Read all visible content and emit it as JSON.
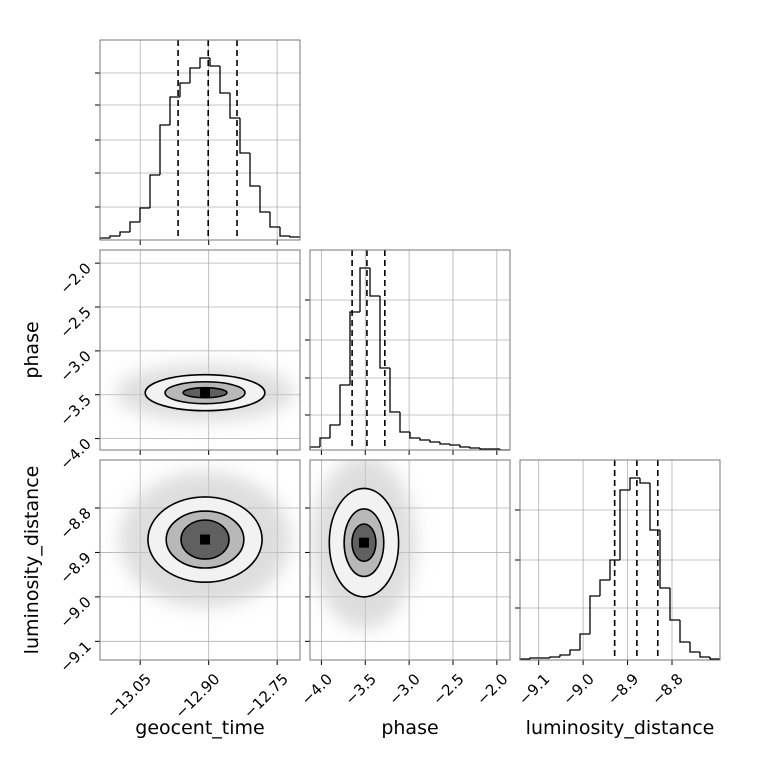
{
  "chart_data": {
    "type": "corner",
    "parameters": [
      {
        "name": "geocent_time",
        "lim": [
          -13.138,
          -12.7
        ],
        "ticks": [
          {
            "value": -13.05,
            "label": "−13.05"
          },
          {
            "value": -12.9,
            "label": "−12.90"
          },
          {
            "value": -12.75,
            "label": "−12.75"
          }
        ]
      },
      {
        "name": "phase",
        "lim": [
          -4.13,
          -1.85
        ],
        "ticks": [
          {
            "value": -4.0,
            "label": "−4.0"
          },
          {
            "value": -3.5,
            "label": "−3.5"
          },
          {
            "value": -3.0,
            "label": "−3.0"
          },
          {
            "value": -2.5,
            "label": "−2.5"
          },
          {
            "value": -2.0,
            "label": "−2.0"
          }
        ]
      },
      {
        "name": "luminosity_distance",
        "lim": [
          -9.142,
          -8.692
        ],
        "ticks": [
          {
            "value": -9.1,
            "label": "−9.1"
          },
          {
            "value": -9.0,
            "label": "−9.0"
          },
          {
            "value": -8.9,
            "label": "−8.9"
          },
          {
            "value": -8.8,
            "label": "−8.8"
          }
        ]
      }
    ],
    "histograms": [
      {
        "bins": [
          -13.138,
          -13.1161,
          -13.0942,
          -13.0723,
          -13.0504,
          -13.0285,
          -13.0066,
          -12.9847,
          -12.9628,
          -12.9409,
          -12.919,
          -12.8971,
          -12.8752,
          -12.8533,
          -12.8314,
          -12.8095,
          -12.7876,
          -12.7657,
          -12.7438,
          -12.7219,
          -12.7
        ],
        "counts": [
          2,
          4,
          8,
          18,
          32,
          65,
          115,
          143,
          157,
          172,
          182,
          174,
          147,
          122,
          87,
          54,
          28,
          13,
          4,
          3
        ],
        "quantiles": [
          -12.967,
          -12.901,
          -12.838
        ],
        "ylim": [
          0,
          200
        ],
        "yticks": [
          33,
          67,
          100,
          135,
          167
        ]
      },
      {
        "bins": [
          -4.13,
          -4.016,
          -3.902,
          -3.788,
          -3.674,
          -3.56,
          -3.446,
          -3.332,
          -3.218,
          -3.104,
          -2.99,
          -2.876,
          -2.762,
          -2.648,
          -2.534,
          -2.42,
          -2.306,
          -2.192,
          -2.078,
          -1.964,
          -1.85
        ],
        "counts": [
          3,
          12,
          25,
          65,
          138,
          182,
          154,
          82,
          38,
          18,
          12,
          10,
          8,
          6,
          5,
          3,
          2,
          1,
          1,
          0
        ],
        "quantiles": [
          -3.65,
          -3.481,
          -3.277
        ],
        "ylim": [
          0,
          200
        ],
        "yticks": [
          35,
          72,
          110,
          150
        ]
      },
      {
        "bins": [
          -9.142,
          -9.1195,
          -9.097,
          -9.0745,
          -9.052,
          -9.0295,
          -9.007,
          -8.9845,
          -8.962,
          -8.9395,
          -8.917,
          -8.8945,
          -8.872,
          -8.8495,
          -8.827,
          -8.8045,
          -8.782,
          -8.7595,
          -8.737,
          -8.7145,
          -8.692
        ],
        "counts": [
          1,
          2,
          2,
          3,
          5,
          10,
          26,
          64,
          80,
          100,
          170,
          182,
          177,
          130,
          72,
          40,
          18,
          8,
          3,
          1
        ],
        "quantiles": [
          -8.929,
          -8.879,
          -8.832
        ],
        "ylim": [
          0,
          200
        ],
        "yticks": [
          52,
          100,
          150
        ]
      }
    ],
    "contours": [
      {
        "center": [
          -12.908,
          -3.477
        ],
        "levels": [
          {
            "x_halfwidth": 0.131,
            "y_halfwidth": 0.205
          },
          {
            "x_halfwidth": 0.0875,
            "y_halfwidth": 0.125
          },
          {
            "x_halfwidth": 0.048,
            "y_halfwidth": 0.057
          }
        ]
      },
      {
        "center": [
          -12.908,
          -8.871
        ],
        "levels": [
          {
            "x_halfwidth": 0.125,
            "y_halfwidth": 0.096
          },
          {
            "x_halfwidth": 0.085,
            "y_halfwidth": 0.064
          },
          {
            "x_halfwidth": 0.0525,
            "y_halfwidth": 0.044
          }
        ]
      },
      {
        "center": [
          -3.515,
          -8.878
        ],
        "levels": [
          {
            "x_halfwidth": 0.395,
            "y_halfwidth": 0.122
          },
          {
            "x_halfwidth": 0.226,
            "y_halfwidth": 0.076
          },
          {
            "x_halfwidth": 0.136,
            "y_halfwidth": 0.042
          }
        ]
      }
    ]
  }
}
